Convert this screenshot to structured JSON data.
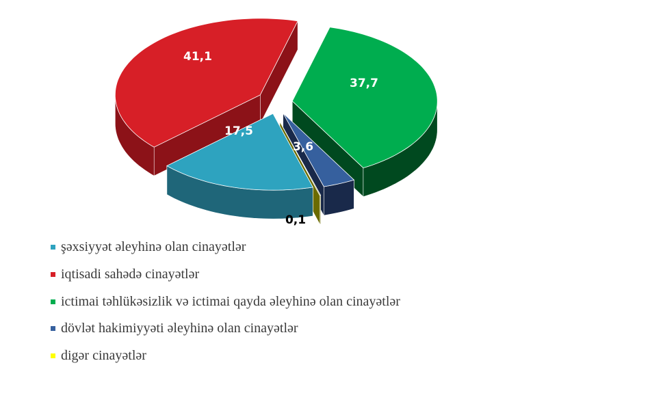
{
  "chart_data": {
    "type": "pie",
    "style": "3d-exploded",
    "title": "",
    "slices": [
      {
        "name": "ictimai təhlükəsizlik və ictimai qayda əleyhinə olan cinayətlər",
        "value": 37.7,
        "label": "37,7",
        "color": "#00ad4f",
        "side": "#00491f"
      },
      {
        "name": "dövlət hakimiyyəti əleyhinə olan cinayətlər",
        "value": 3.6,
        "label": "3,6",
        "color": "#36609e",
        "side": "#19294a"
      },
      {
        "name": "digər cinayətlər",
        "value": 0.1,
        "label": "0,1",
        "color": "#ffff00",
        "side": "#6b6b00"
      },
      {
        "name": "şəxsiyyət əleyhinə olan cinayətlər",
        "value": 17.5,
        "label": "17,5",
        "color": "#2ea3bf",
        "side": "#1f6679"
      },
      {
        "name": "iqtisadi sahədə cinayətlər",
        "value": 41.1,
        "label": "41,1",
        "color": "#d71f27",
        "side": "#8c1218"
      }
    ],
    "legend_position": "bottom-left",
    "legend": [
      {
        "label": "şəxsiyyət əleyhinə olan cinayətlər",
        "color": "#2ea3bf"
      },
      {
        "label": "iqtisadi sahədə cinayətlər",
        "color": "#d71f27"
      },
      {
        "label": "ictimai təhlükəsizlik və ictimai qayda əleyhinə olan cinayətlər",
        "color": "#00ad4f"
      },
      {
        "label": "dövlət hakimiyyəti əleyhinə olan cinayətlər",
        "color": "#36609e"
      },
      {
        "label": "digər cinayətlər",
        "color": "#ffff00"
      }
    ]
  }
}
